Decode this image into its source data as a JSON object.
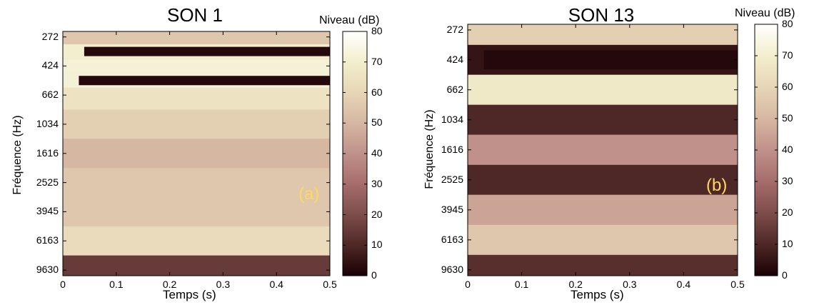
{
  "colors": {
    "colormap": [
      "#1b0004",
      "#4e2826",
      "#7e4d4b",
      "#a56d6c",
      "#c0918a",
      "#d6b7a2",
      "#e6d6b6",
      "#f3eecd",
      "#ffffff"
    ],
    "annotation": "#ffd860"
  },
  "chart_data": [
    {
      "type": "heatmap",
      "title": "SON 1",
      "xlabel": "Temps (s)",
      "ylabel": "Fréquence (Hz)",
      "xlim": [
        0,
        0.5
      ],
      "x_ticks": [
        "0",
        "0.1",
        "0.2",
        "0.3",
        "0.4",
        "0.5"
      ],
      "y_ticks": [
        "272",
        "424",
        "662",
        "1034",
        "1616",
        "2525",
        "3945",
        "6163",
        "9630"
      ],
      "colorbar": {
        "label": "Niveau (dB)",
        "ticks": [
          "0",
          "10",
          "20",
          "30",
          "40",
          "50",
          "60",
          "70",
          "80"
        ],
        "range": [
          0,
          80
        ]
      },
      "annotation": "(a)",
      "bands": [
        {
          "freq": 272,
          "level": 55,
          "notch_after": null
        },
        {
          "freq": 340,
          "level": 70,
          "notch_after": 0.04
        },
        {
          "freq": 424,
          "level": 72,
          "notch_after": null
        },
        {
          "freq": 530,
          "level": 72,
          "notch_after": 0.03
        },
        {
          "freq": 662,
          "level": 65,
          "notch_after": null
        },
        {
          "freq": 1034,
          "level": 58,
          "notch_after": null
        },
        {
          "freq": 1616,
          "level": 50,
          "notch_after": null
        },
        {
          "freq": 2525,
          "level": 55,
          "notch_after": null
        },
        {
          "freq": 3945,
          "level": 55,
          "notch_after": null
        },
        {
          "freq": 6163,
          "level": 62,
          "notch_after": null
        },
        {
          "freq": 9630,
          "level": 15,
          "notch_after": null
        }
      ]
    },
    {
      "type": "heatmap",
      "title": "SON 13",
      "xlabel": "Temps (s)",
      "ylabel": "Fréquence (Hz)",
      "xlim": [
        0,
        0.5
      ],
      "x_ticks": [
        "0",
        "0.1",
        "0.2",
        "0.3",
        "0.4",
        "0.5"
      ],
      "y_ticks": [
        "272",
        "424",
        "662",
        "1034",
        "1616",
        "2525",
        "3945",
        "6163",
        "9630"
      ],
      "colorbar": {
        "label": "Niveau (dB)",
        "ticks": [
          "0",
          "10",
          "20",
          "30",
          "40",
          "50",
          "60",
          "70",
          "80"
        ],
        "range": [
          0,
          80
        ]
      },
      "annotation": "(b)",
      "bands": [
        {
          "freq": 272,
          "level": 58,
          "notch_after": null
        },
        {
          "freq": 424,
          "level": 5,
          "notch_after": 0.03
        },
        {
          "freq": 662,
          "level": 68,
          "notch_after": null
        },
        {
          "freq": 1034,
          "level": 10,
          "notch_after": null
        },
        {
          "freq": 1616,
          "level": 40,
          "notch_after": null
        },
        {
          "freq": 2525,
          "level": 10,
          "notch_after": null
        },
        {
          "freq": 3945,
          "level": 45,
          "notch_after": null
        },
        {
          "freq": 6163,
          "level": 55,
          "notch_after": null
        },
        {
          "freq": 9630,
          "level": 12,
          "notch_after": null
        }
      ]
    }
  ]
}
